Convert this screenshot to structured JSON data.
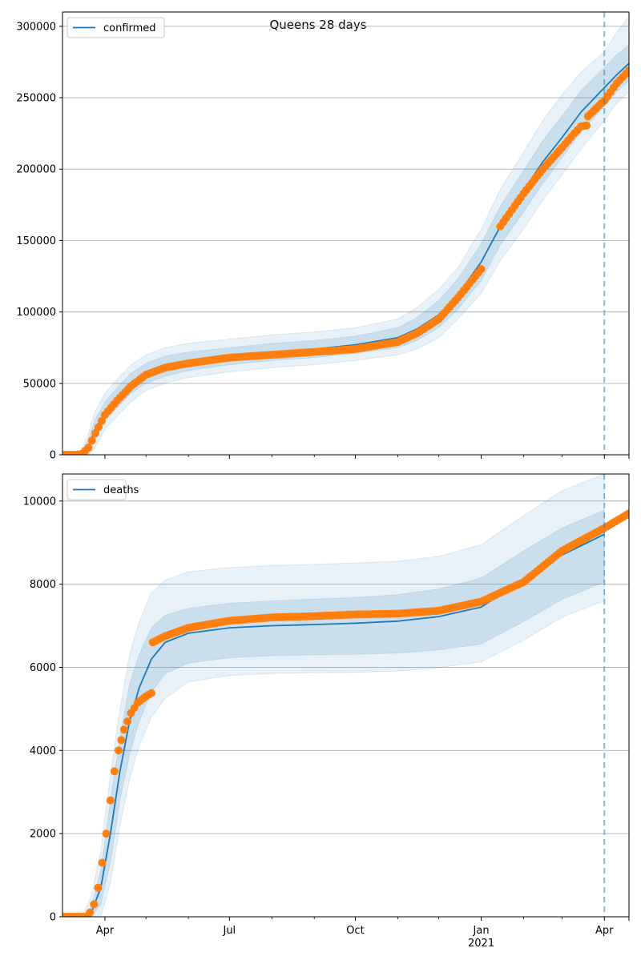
{
  "figure": {
    "title": "Queens 28 days"
  },
  "colors": {
    "model": "#1f77b4",
    "observed": "#ff7f0e",
    "band": "#1f77b4",
    "grid": "#b0b0b0",
    "axis": "#000000"
  },
  "chart_data": [
    {
      "type": "line",
      "legend": [
        "confirmed"
      ],
      "legend_position": "top-left",
      "grid": "horizontal",
      "xlim": [
        "2020-03-01",
        "2021-04-19"
      ],
      "ylim": [
        0,
        310000
      ],
      "yticks": [
        0,
        50000,
        100000,
        150000,
        200000,
        250000,
        300000
      ],
      "ytick_labels": [
        "0",
        "50000",
        "100000",
        "150000",
        "200000",
        "250000",
        "300000"
      ],
      "forecast_start": "2021-04-01",
      "model": {
        "name": "confirmed",
        "x": [
          "2020-03-01",
          "2020-03-10",
          "2020-03-15",
          "2020-03-20",
          "2020-03-25",
          "2020-04-01",
          "2020-04-10",
          "2020-04-20",
          "2020-05-01",
          "2020-05-15",
          "2020-06-01",
          "2020-07-01",
          "2020-08-01",
          "2020-09-01",
          "2020-10-01",
          "2020-11-01",
          "2020-11-15",
          "2020-12-01",
          "2020-12-15",
          "2021-01-01",
          "2021-01-15",
          "2021-02-01",
          "2021-02-15",
          "2021-03-01",
          "2021-03-15",
          "2021-04-01",
          "2021-04-10",
          "2021-04-19"
        ],
        "y": [
          0,
          0,
          1000,
          6000,
          18000,
          30000,
          40000,
          50000,
          57000,
          62000,
          65000,
          69000,
          72000,
          74000,
          77000,
          82000,
          88000,
          98000,
          112000,
          135000,
          160000,
          185000,
          205000,
          222000,
          240000,
          257000,
          266000,
          274000
        ],
        "bands": [
          {
            "lower": [
              0,
              0,
              0,
              1000,
              11000,
              24000,
              33000,
              43000,
              50000,
              55000,
              59000,
              63000,
              66000,
              68000,
              71000,
              75000,
              80000,
              89000,
              102000,
              122000,
              147000,
              170000,
              190000,
              208000,
              226000,
              244000,
              254000,
              262000
            ],
            "upper": [
              0,
              0,
              2500,
              11000,
              25000,
              37000,
              47000,
              57000,
              64000,
              69000,
              72000,
              75000,
              78000,
              80000,
              83000,
              89000,
              96000,
              108000,
              123000,
              148000,
              174000,
              199000,
              220000,
              237000,
              255000,
              271000,
              280000,
              287000
            ]
          },
          {
            "lower": [
              0,
              0,
              0,
              0,
              5000,
              18000,
              27000,
              37000,
              45000,
              50000,
              54000,
              58000,
              61000,
              63000,
              66000,
              70000,
              74000,
              82000,
              95000,
              113000,
              136000,
              158000,
              178000,
              196000,
              214000,
              234000,
              246000,
              254000
            ],
            "upper": [
              0,
              0,
              4000,
              15000,
              31000,
              43000,
              53000,
              63000,
              70000,
              75000,
              78000,
              81000,
              84000,
              86000,
              89000,
              95000,
              103000,
              116000,
              131000,
              158000,
              186000,
              212000,
              234000,
              252000,
              268000,
              282000,
              296000,
              307000
            ]
          }
        ]
      },
      "observed": {
        "x": [
          "2020-03-01",
          "2020-03-10",
          "2020-03-15",
          "2020-03-20",
          "2020-03-25",
          "2020-04-01",
          "2020-04-10",
          "2020-04-20",
          "2020-05-01",
          "2020-05-15",
          "2020-06-01",
          "2020-07-01",
          "2020-08-01",
          "2020-09-01",
          "2020-10-01",
          "2020-11-01",
          "2020-11-15",
          "2020-12-01",
          "2020-12-15",
          "2021-01-01",
          "2021-01-15",
          "2021-02-01",
          "2021-02-15",
          "2021-03-01",
          "2021-03-10",
          "2021-03-15",
          "2021-03-19",
          "2021-03-20",
          "2021-04-01",
          "2021-04-10",
          "2021-04-19"
        ],
        "y": [
          0,
          0,
          500,
          5000,
          15000,
          28000,
          38000,
          48000,
          56000,
          61000,
          64000,
          68000,
          70000,
          72000,
          74000,
          79000,
          85000,
          95000,
          110000,
          130000,
          160000,
          183000,
          200000,
          215000,
          225000,
          230000,
          230500,
          237000,
          248000,
          260000,
          269000
        ]
      }
    },
    {
      "type": "line",
      "legend": [
        "deaths"
      ],
      "legend_position": "top-left",
      "grid": "horizontal",
      "xlim": [
        "2020-03-01",
        "2021-04-19"
      ],
      "ylim": [
        0,
        10650
      ],
      "yticks": [
        0,
        2000,
        4000,
        6000,
        8000,
        10000
      ],
      "ytick_labels": [
        "0",
        "2000",
        "4000",
        "6000",
        "8000",
        "10000"
      ],
      "xticks_major": [
        "2020-04-01",
        "2020-07-01",
        "2020-10-01",
        "2021-01-01",
        "2021-04-01"
      ],
      "xtick_labels": [
        "Apr",
        "Jul",
        "Oct",
        "Jan",
        "Apr"
      ],
      "xtick_sublabels": [
        "",
        "",
        "",
        "2021",
        ""
      ],
      "xticks_minor": [
        "2020-05-01",
        "2020-06-01",
        "2020-08-01",
        "2020-09-01",
        "2020-11-01",
        "2020-12-01",
        "2021-02-01",
        "2021-03-01"
      ],
      "forecast_start": "2021-04-01",
      "model": {
        "name": "deaths",
        "x": [
          "2020-03-01",
          "2020-03-15",
          "2020-03-22",
          "2020-03-29",
          "2020-04-05",
          "2020-04-12",
          "2020-04-19",
          "2020-04-26",
          "2020-05-05",
          "2020-05-15",
          "2020-06-01",
          "2020-07-01",
          "2020-08-01",
          "2020-09-01",
          "2020-10-01",
          "2020-11-01",
          "2020-12-01",
          "2021-01-01",
          "2021-02-01",
          "2021-03-01",
          "2021-04-01"
        ],
        "y": [
          0,
          0,
          100,
          700,
          2000,
          3500,
          4700,
          5500,
          6200,
          6600,
          6820,
          6950,
          7000,
          7030,
          7060,
          7110,
          7220,
          7450,
          8100,
          8700,
          9200
        ],
        "bands": [
          {
            "lower": [
              0,
              0,
              0,
              300,
              1300,
              2800,
              3900,
              4700,
              5400,
              5850,
              6100,
              6230,
              6280,
              6300,
              6310,
              6340,
              6420,
              6560,
              7100,
              7630,
              8050
            ],
            "upper": [
              0,
              0,
              250,
              1100,
              2800,
              4300,
              5600,
              6300,
              6950,
              7250,
              7420,
              7540,
              7600,
              7640,
              7680,
              7750,
              7880,
              8150,
              8800,
              9350,
              9780
            ]
          },
          {
            "lower": [
              0,
              0,
              0,
              0,
              800,
              2200,
              3300,
              4100,
              4800,
              5250,
              5650,
              5800,
              5850,
              5870,
              5880,
              5910,
              5990,
              6130,
              6650,
              7200,
              7600
            ],
            "upper": [
              0,
              0,
              500,
              1600,
              3400,
              5000,
              6300,
              7100,
              7800,
              8100,
              8300,
              8400,
              8450,
              8480,
              8510,
              8550,
              8670,
              8950,
              9650,
              10250,
              10650
            ]
          }
        ]
      },
      "observed": {
        "x": [
          "2020-03-01",
          "2020-03-18",
          "2020-03-21",
          "2020-03-24",
          "2020-03-27",
          "2020-03-30",
          "2020-04-02",
          "2020-04-05",
          "2020-04-08",
          "2020-04-11",
          "2020-04-15",
          "2020-04-20",
          "2020-04-25",
          "2020-05-01",
          "2020-05-05",
          "2020-05-06",
          "2020-05-15",
          "2020-06-01",
          "2020-07-01",
          "2020-08-01",
          "2020-09-01",
          "2020-10-01",
          "2020-11-01",
          "2020-12-01",
          "2021-01-01",
          "2021-02-01",
          "2021-03-01",
          "2021-04-01",
          "2021-04-19"
        ],
        "y": [
          0,
          0,
          100,
          300,
          700,
          1300,
          2000,
          2800,
          3500,
          4000,
          4500,
          4900,
          5150,
          5300,
          5380,
          6600,
          6750,
          6950,
          7120,
          7200,
          7230,
          7270,
          7290,
          7360,
          7580,
          8050,
          8800,
          9350,
          9700
        ]
      }
    }
  ]
}
